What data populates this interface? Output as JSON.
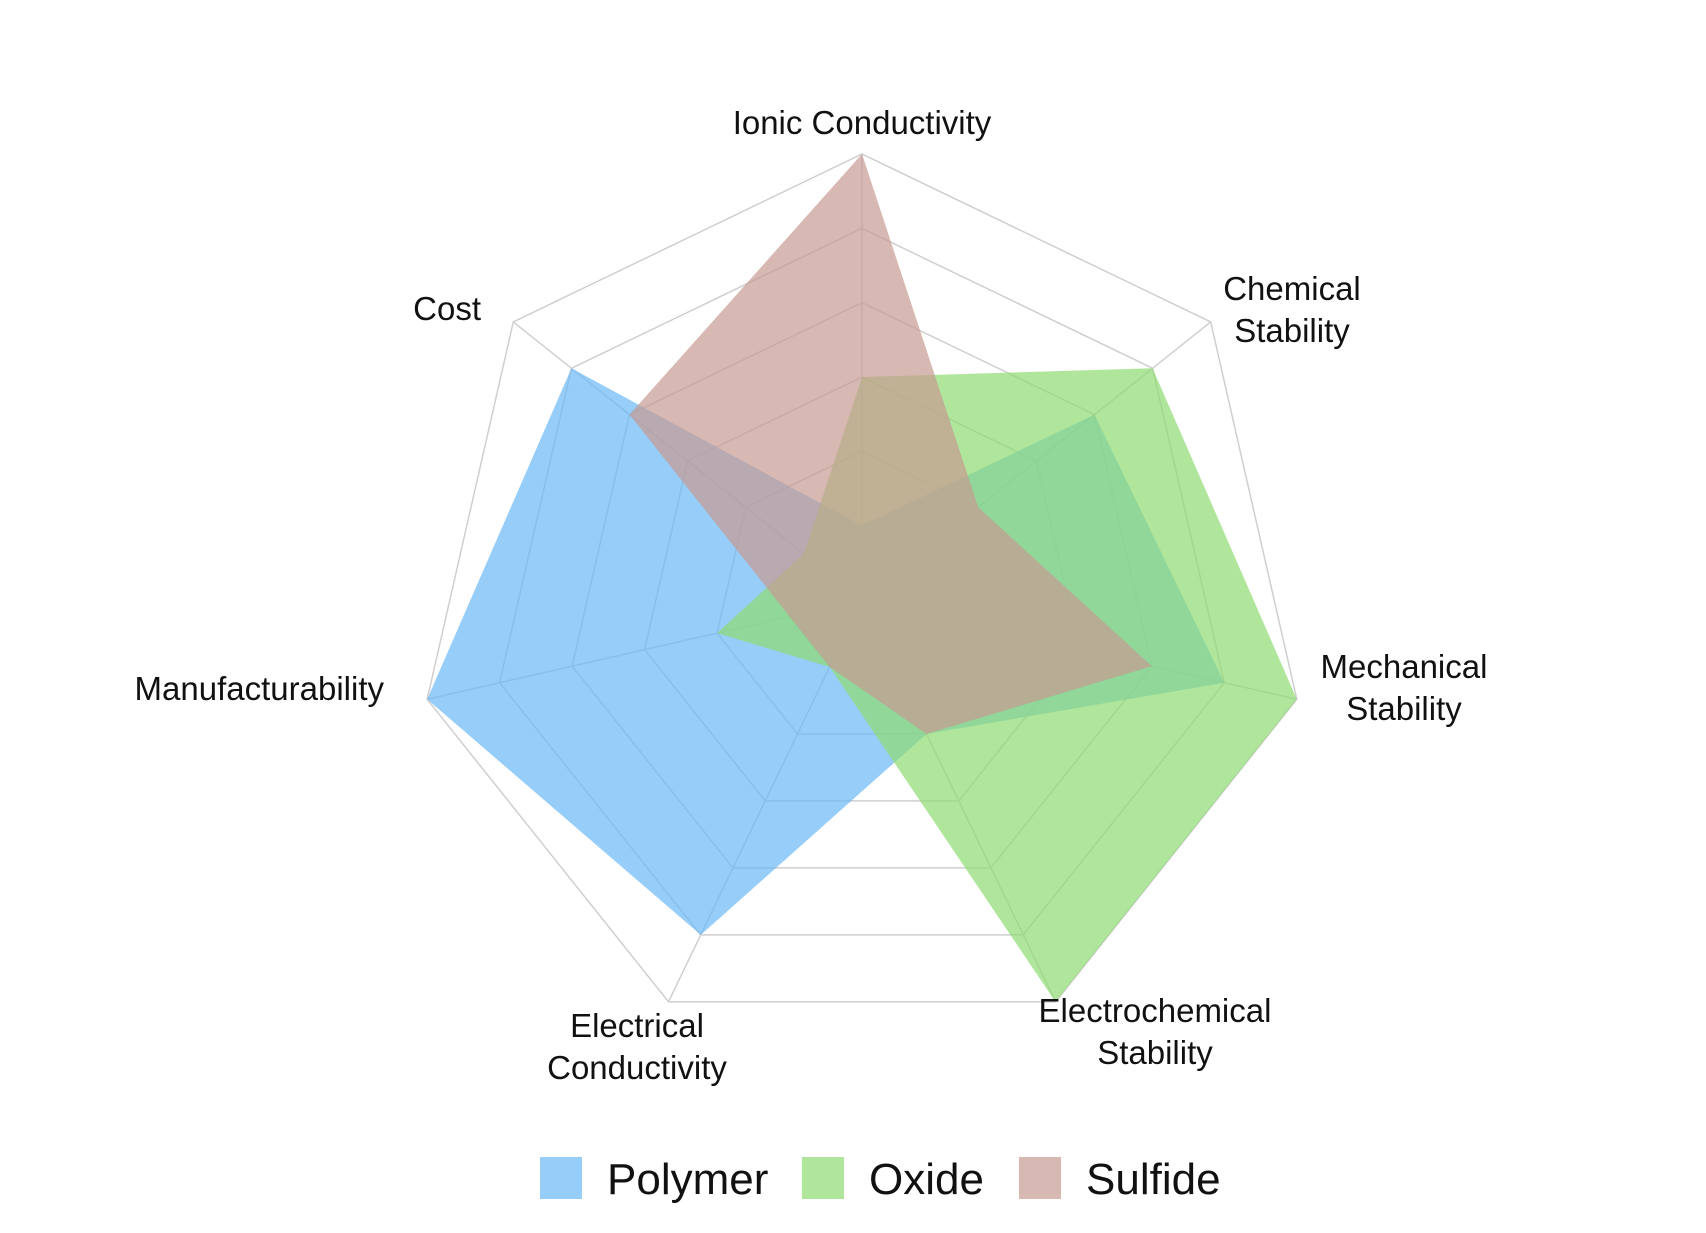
{
  "chart_data": {
    "type": "radar",
    "title": "",
    "axes": [
      [
        "Ionic Conductivity"
      ],
      [
        "Chemical",
        "Stability"
      ],
      [
        "Mechanical",
        "Stability"
      ],
      [
        "Electrochemical",
        "Stability"
      ],
      [
        "Electrical",
        "Conductivity"
      ],
      [
        "Manufacturability"
      ],
      [
        "Cost"
      ]
    ],
    "range": [
      0,
      6
    ],
    "grid_levels": 6,
    "grid": true,
    "legend_position": "bottom",
    "series": [
      {
        "name": "Polymer",
        "color": "#6ab8f7",
        "values": [
          1,
          4,
          5,
          2,
          5,
          6,
          5
        ]
      },
      {
        "name": "Oxide",
        "color": "#8fdc72",
        "values": [
          3,
          5,
          6,
          6,
          1,
          2,
          1
        ]
      },
      {
        "name": "Sulfide",
        "color": "#c79a92",
        "values": [
          6,
          2,
          4,
          2,
          1,
          1,
          4
        ]
      }
    ]
  }
}
